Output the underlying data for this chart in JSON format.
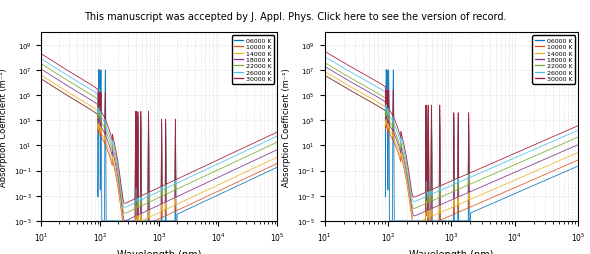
{
  "title_bar": "This manuscript was accepted by J. Appl. Phys. Click here to see the version of record.",
  "title_bar_link": "here",
  "xlabel": "Wavelength (nm)",
  "ylabel": "Absorption Coefficient (m⁻¹)",
  "xlim": [
    10,
    100000
  ],
  "ylim": [
    1e-05,
    10000000000.0
  ],
  "temperatures": [
    "06000 K",
    "10000 K",
    "14000 K",
    "18000 K",
    "22000 K",
    "26000 K",
    "30000 K"
  ],
  "colors": [
    "#0072BD",
    "#D95319",
    "#EDB120",
    "#7E2F8E",
    "#77AC30",
    "#4DBEEE",
    "#A2142F"
  ],
  "background_color": "#f5f5f5",
  "grid_color": "#cccccc"
}
